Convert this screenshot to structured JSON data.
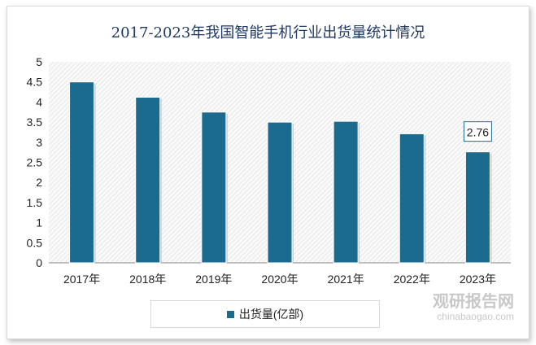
{
  "chart_data": {
    "type": "bar",
    "title": "2017-2023年我国智能手机行业出货量统计情况",
    "categories": [
      "2017年",
      "2018年",
      "2019年",
      "2020年",
      "2021年",
      "2022年",
      "2023年"
    ],
    "series": [
      {
        "name": "出货量(亿部)",
        "values": [
          4.5,
          4.12,
          3.75,
          3.5,
          3.52,
          3.21,
          2.76
        ],
        "color": "#1b6b8f"
      }
    ],
    "data_labels": [
      {
        "category": "2023年",
        "text": "2.76"
      }
    ],
    "ylim": [
      0,
      5
    ],
    "yticks": [
      "0",
      "0.5",
      "1",
      "1.5",
      "2",
      "2.5",
      "3",
      "3.5",
      "4",
      "4.5",
      "5"
    ],
    "grid": false,
    "legend": "bottom"
  },
  "watermark": {
    "name": "观研报告网",
    "url": "chinabaogao.com"
  }
}
